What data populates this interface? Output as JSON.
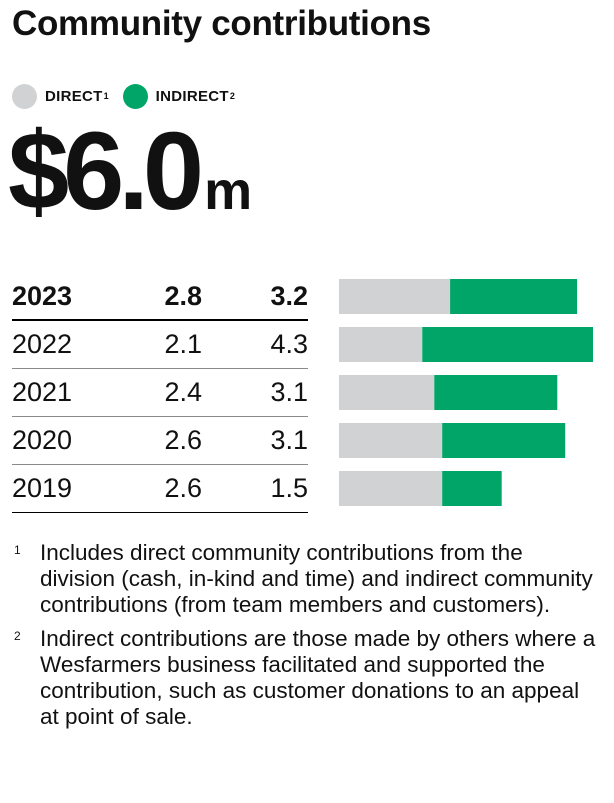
{
  "title": "Community contributions",
  "legend": [
    {
      "label": "DIRECT",
      "sup": "1",
      "color": "#d1d2d4"
    },
    {
      "label": "INDIRECT",
      "sup": "2",
      "color": "#00a567"
    }
  ],
  "total": {
    "value": "$6.0",
    "unit": "m"
  },
  "rows": [
    {
      "year": "2023",
      "direct": "2.8",
      "indirect": "3.2"
    },
    {
      "year": "2022",
      "direct": "2.1",
      "indirect": "4.3"
    },
    {
      "year": "2021",
      "direct": "2.4",
      "indirect": "3.1"
    },
    {
      "year": "2020",
      "direct": "2.6",
      "indirect": "3.1"
    },
    {
      "year": "2019",
      "direct": "2.6",
      "indirect": "1.5"
    }
  ],
  "chart_data": {
    "type": "bar",
    "orientation": "horizontal",
    "stacked": true,
    "categories": [
      "2023",
      "2022",
      "2021",
      "2020",
      "2019"
    ],
    "series": [
      {
        "name": "DIRECT",
        "values": [
          2.8,
          2.1,
          2.4,
          2.6,
          2.6
        ],
        "color": "#d1d2d4"
      },
      {
        "name": "INDIRECT",
        "values": [
          3.2,
          4.3,
          3.1,
          3.1,
          1.5
        ],
        "color": "#00a567"
      }
    ],
    "xlim": [
      0,
      6.4
    ],
    "grid": false
  },
  "footnotes": [
    {
      "num": "1",
      "text": "Includes direct community contributions from the division (cash, in-kind and time) and indirect community contributions (from team members and customers)."
    },
    {
      "num": "2",
      "text": "Indirect contributions are those made by others where a Wesfarmers business facilitated and supported the contribution, such as customer donations to an appeal at point of sale."
    }
  ]
}
